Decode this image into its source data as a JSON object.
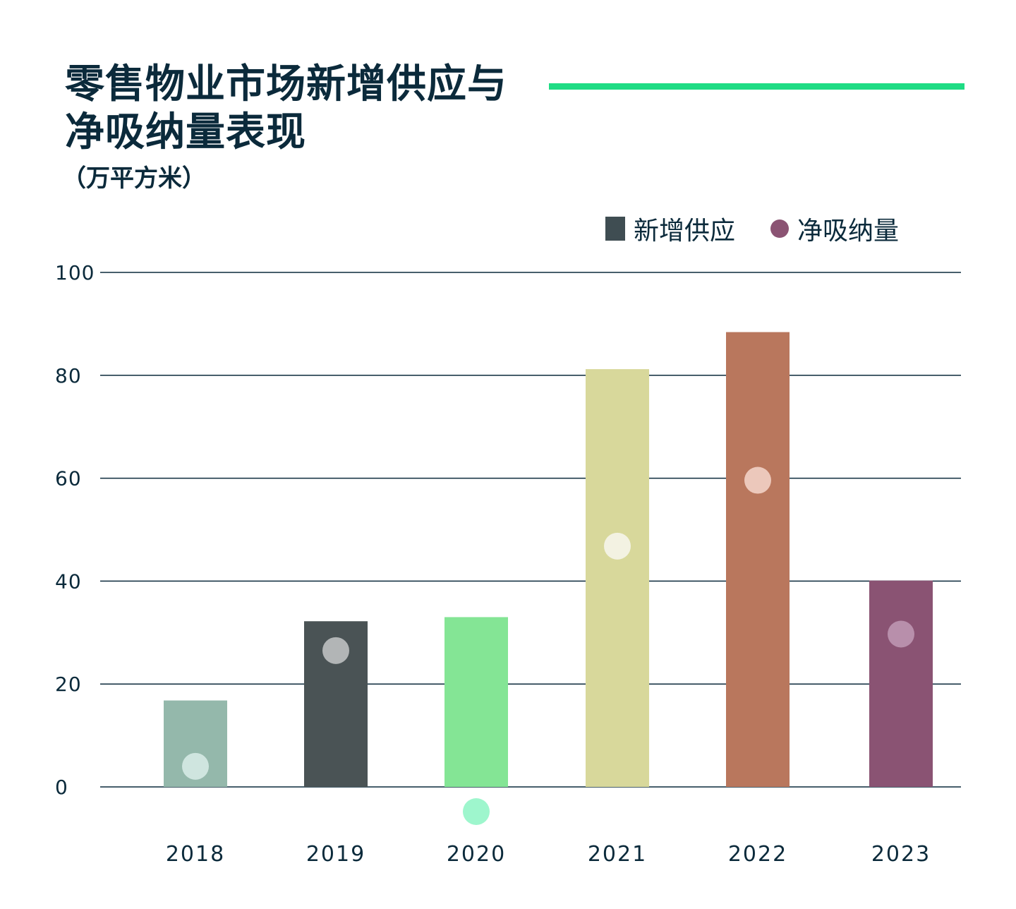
{
  "header": {
    "title_line1": "零售物业市场新增供应与",
    "title_line2": "净吸纳量表现",
    "unit": "（万平方米）"
  },
  "legend": {
    "bar_label": "新增供应",
    "dot_label": "净吸纳量"
  },
  "colors": {
    "title": "#0b2a3b",
    "accent_rule": "#1fdc84",
    "gridline": "#0b2a3b",
    "legend_bar": "#3f4d52",
    "legend_dot": "#8b5373"
  },
  "chart_data": {
    "type": "bar",
    "categories": [
      "2018",
      "2019",
      "2020",
      "2021",
      "2022",
      "2023"
    ],
    "series": [
      {
        "name": "新增供应",
        "kind": "bar",
        "values": [
          16.8,
          32.2,
          33.0,
          81.2,
          88.4,
          40.1
        ]
      },
      {
        "name": "净吸纳量",
        "kind": "dot",
        "values": [
          4.0,
          26.5,
          -4.8,
          46.8,
          59.6,
          29.7
        ]
      }
    ],
    "bar_colors": [
      "#94b8ab",
      "#4a5355",
      "#84e595",
      "#d8d89b",
      "#b9775d",
      "#8a5373"
    ],
    "dot_colors": [
      "#cfe5df",
      "#b2b5b6",
      "#9ef6cd",
      "#f3f2e2",
      "#ecc8bb",
      "#b88fab"
    ],
    "ylim": [
      0,
      100
    ],
    "yticks": [
      0,
      20,
      40,
      60,
      80,
      100
    ],
    "xlabel": "",
    "ylabel": "",
    "grid": true,
    "legend_position": "top-right"
  }
}
